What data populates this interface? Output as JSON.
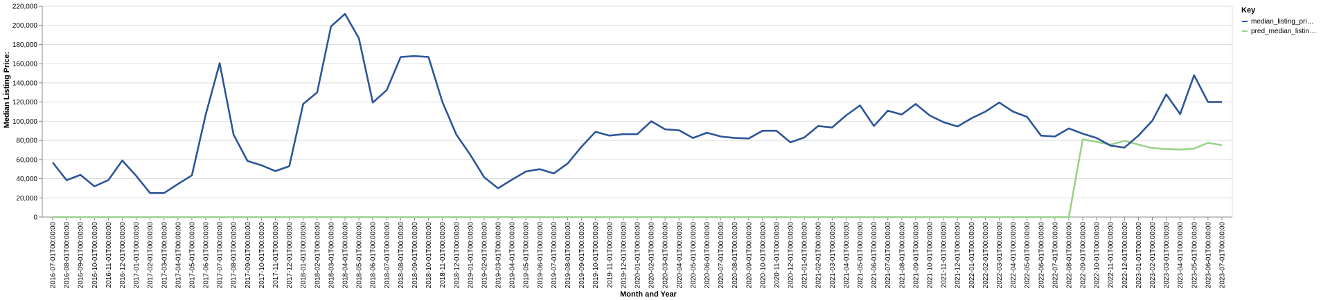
{
  "chart_data": {
    "type": "line",
    "xlabel": "Month and Year",
    "ylabel": "Median Listing Price:",
    "ylim": [
      0,
      220000
    ],
    "yticks": [
      0,
      20000,
      40000,
      60000,
      80000,
      100000,
      120000,
      140000,
      160000,
      180000,
      200000,
      220000
    ],
    "ytick_labels": [
      "0",
      "20,000",
      "40,000",
      "60,000",
      "80,000",
      "100,000",
      "120,000",
      "140,000",
      "160,000",
      "180,000",
      "200,000",
      "220,000"
    ],
    "grid": true,
    "legend": {
      "title": "Key",
      "position": "right"
    },
    "x": [
      "2016-07-01T00:00:00",
      "2016-08-01T00:00:00",
      "2016-09-01T00:00:00",
      "2016-10-01T00:00:00",
      "2016-11-01T00:00:00",
      "2016-12-01T00:00:00",
      "2017-01-01T00:00:00",
      "2017-02-01T00:00:00",
      "2017-03-01T00:00:00",
      "2017-04-01T00:00:00",
      "2017-05-01T00:00:00",
      "2017-06-01T00:00:00",
      "2017-07-01T00:00:00",
      "2017-08-01T00:00:00",
      "2017-09-01T00:00:00",
      "2017-10-01T00:00:00",
      "2017-11-01T00:00:00",
      "2017-12-01T00:00:00",
      "2018-01-01T00:00:00",
      "2018-02-01T00:00:00",
      "2018-03-01T00:00:00",
      "2018-04-01T00:00:00",
      "2018-05-01T00:00:00",
      "2018-06-01T00:00:00",
      "2018-07-01T00:00:00",
      "2018-08-01T00:00:00",
      "2018-09-01T00:00:00",
      "2018-10-01T00:00:00",
      "2018-11-01T00:00:00",
      "2018-12-01T00:00:00",
      "2019-01-01T00:00:00",
      "2019-02-01T00:00:00",
      "2019-03-01T00:00:00",
      "2019-04-01T00:00:00",
      "2019-05-01T00:00:00",
      "2019-06-01T00:00:00",
      "2019-07-01T00:00:00",
      "2019-08-01T00:00:00",
      "2019-09-01T00:00:00",
      "2019-10-01T00:00:00",
      "2019-11-01T00:00:00",
      "2019-12-01T00:00:00",
      "2020-01-01T00:00:00",
      "2020-02-01T00:00:00",
      "2020-03-01T00:00:00",
      "2020-04-01T00:00:00",
      "2020-05-01T00:00:00",
      "2020-06-01T00:00:00",
      "2020-07-01T00:00:00",
      "2020-08-01T00:00:00",
      "2020-09-01T00:00:00",
      "2020-10-01T00:00:00",
      "2020-11-01T00:00:00",
      "2020-12-01T00:00:00",
      "2021-01-01T00:00:00",
      "2021-02-01T00:00:00",
      "2021-03-01T00:00:00",
      "2021-04-01T00:00:00",
      "2021-05-01T00:00:00",
      "2021-06-01T00:00:00",
      "2021-07-01T00:00:00",
      "2021-08-01T00:00:00",
      "2021-09-01T00:00:00",
      "2021-10-01T00:00:00",
      "2021-11-01T00:00:00",
      "2021-12-01T00:00:00",
      "2022-01-01T00:00:00",
      "2022-02-01T00:00:00",
      "2022-03-01T00:00:00",
      "2022-04-01T00:00:00",
      "2022-05-01T00:00:00",
      "2022-06-01T00:00:00",
      "2022-07-01T00:00:00",
      "2022-08-01T00:00:00",
      "2022-09-01T00:00:00",
      "2022-10-01T00:00:00",
      "2022-11-01T00:00:00",
      "2022-12-01T00:00:00",
      "2023-01-01T00:00:00",
      "2023-02-01T00:00:00",
      "2023-03-01T00:00:00",
      "2023-04-01T00:00:00",
      "2023-05-01T00:00:00",
      "2023-06-01T00:00:00",
      "2023-07-01T00:00:00"
    ],
    "series": [
      {
        "name": "median_listing_pri…",
        "color": "#2d5599",
        "values": [
          57000,
          38500,
          44000,
          32000,
          38500,
          59000,
          43000,
          25000,
          25000,
          34500,
          43500,
          107000,
          160500,
          86000,
          58500,
          54000,
          48000,
          53000,
          118000,
          130000,
          199000,
          212000,
          186500,
          119500,
          132500,
          167000,
          168000,
          167000,
          120000,
          86000,
          65000,
          41500,
          30000,
          39000,
          47500,
          50000,
          45500,
          56000,
          73500,
          89000,
          85000,
          86500,
          86500,
          100000,
          91500,
          90500,
          82500,
          88000,
          84000,
          82500,
          82000,
          90000,
          90000,
          78000,
          83000,
          95000,
          93500,
          106000,
          116500,
          95000,
          111000,
          107000,
          118000,
          106000,
          99000,
          94500,
          103000,
          110000,
          119500,
          110000,
          104500,
          85000,
          84000,
          92500,
          87000,
          82500,
          74500,
          72500,
          85000,
          100500,
          128000,
          107500,
          148000,
          120000,
          120000
        ]
      },
      {
        "name": "pred_median_listin…",
        "color": "#9ad38a",
        "values": [
          0,
          0,
          0,
          0,
          0,
          0,
          0,
          0,
          0,
          0,
          0,
          0,
          0,
          0,
          0,
          0,
          0,
          0,
          0,
          0,
          0,
          0,
          0,
          0,
          0,
          0,
          0,
          0,
          0,
          0,
          0,
          0,
          0,
          0,
          0,
          0,
          0,
          0,
          0,
          0,
          0,
          0,
          0,
          0,
          0,
          0,
          0,
          0,
          0,
          0,
          0,
          0,
          0,
          0,
          0,
          0,
          0,
          0,
          0,
          0,
          0,
          0,
          0,
          0,
          0,
          0,
          0,
          0,
          0,
          0,
          0,
          0,
          0,
          0,
          81000,
          78500,
          75500,
          79500,
          75500,
          72000,
          71000,
          70500,
          71500,
          77500,
          75000
        ]
      }
    ]
  }
}
